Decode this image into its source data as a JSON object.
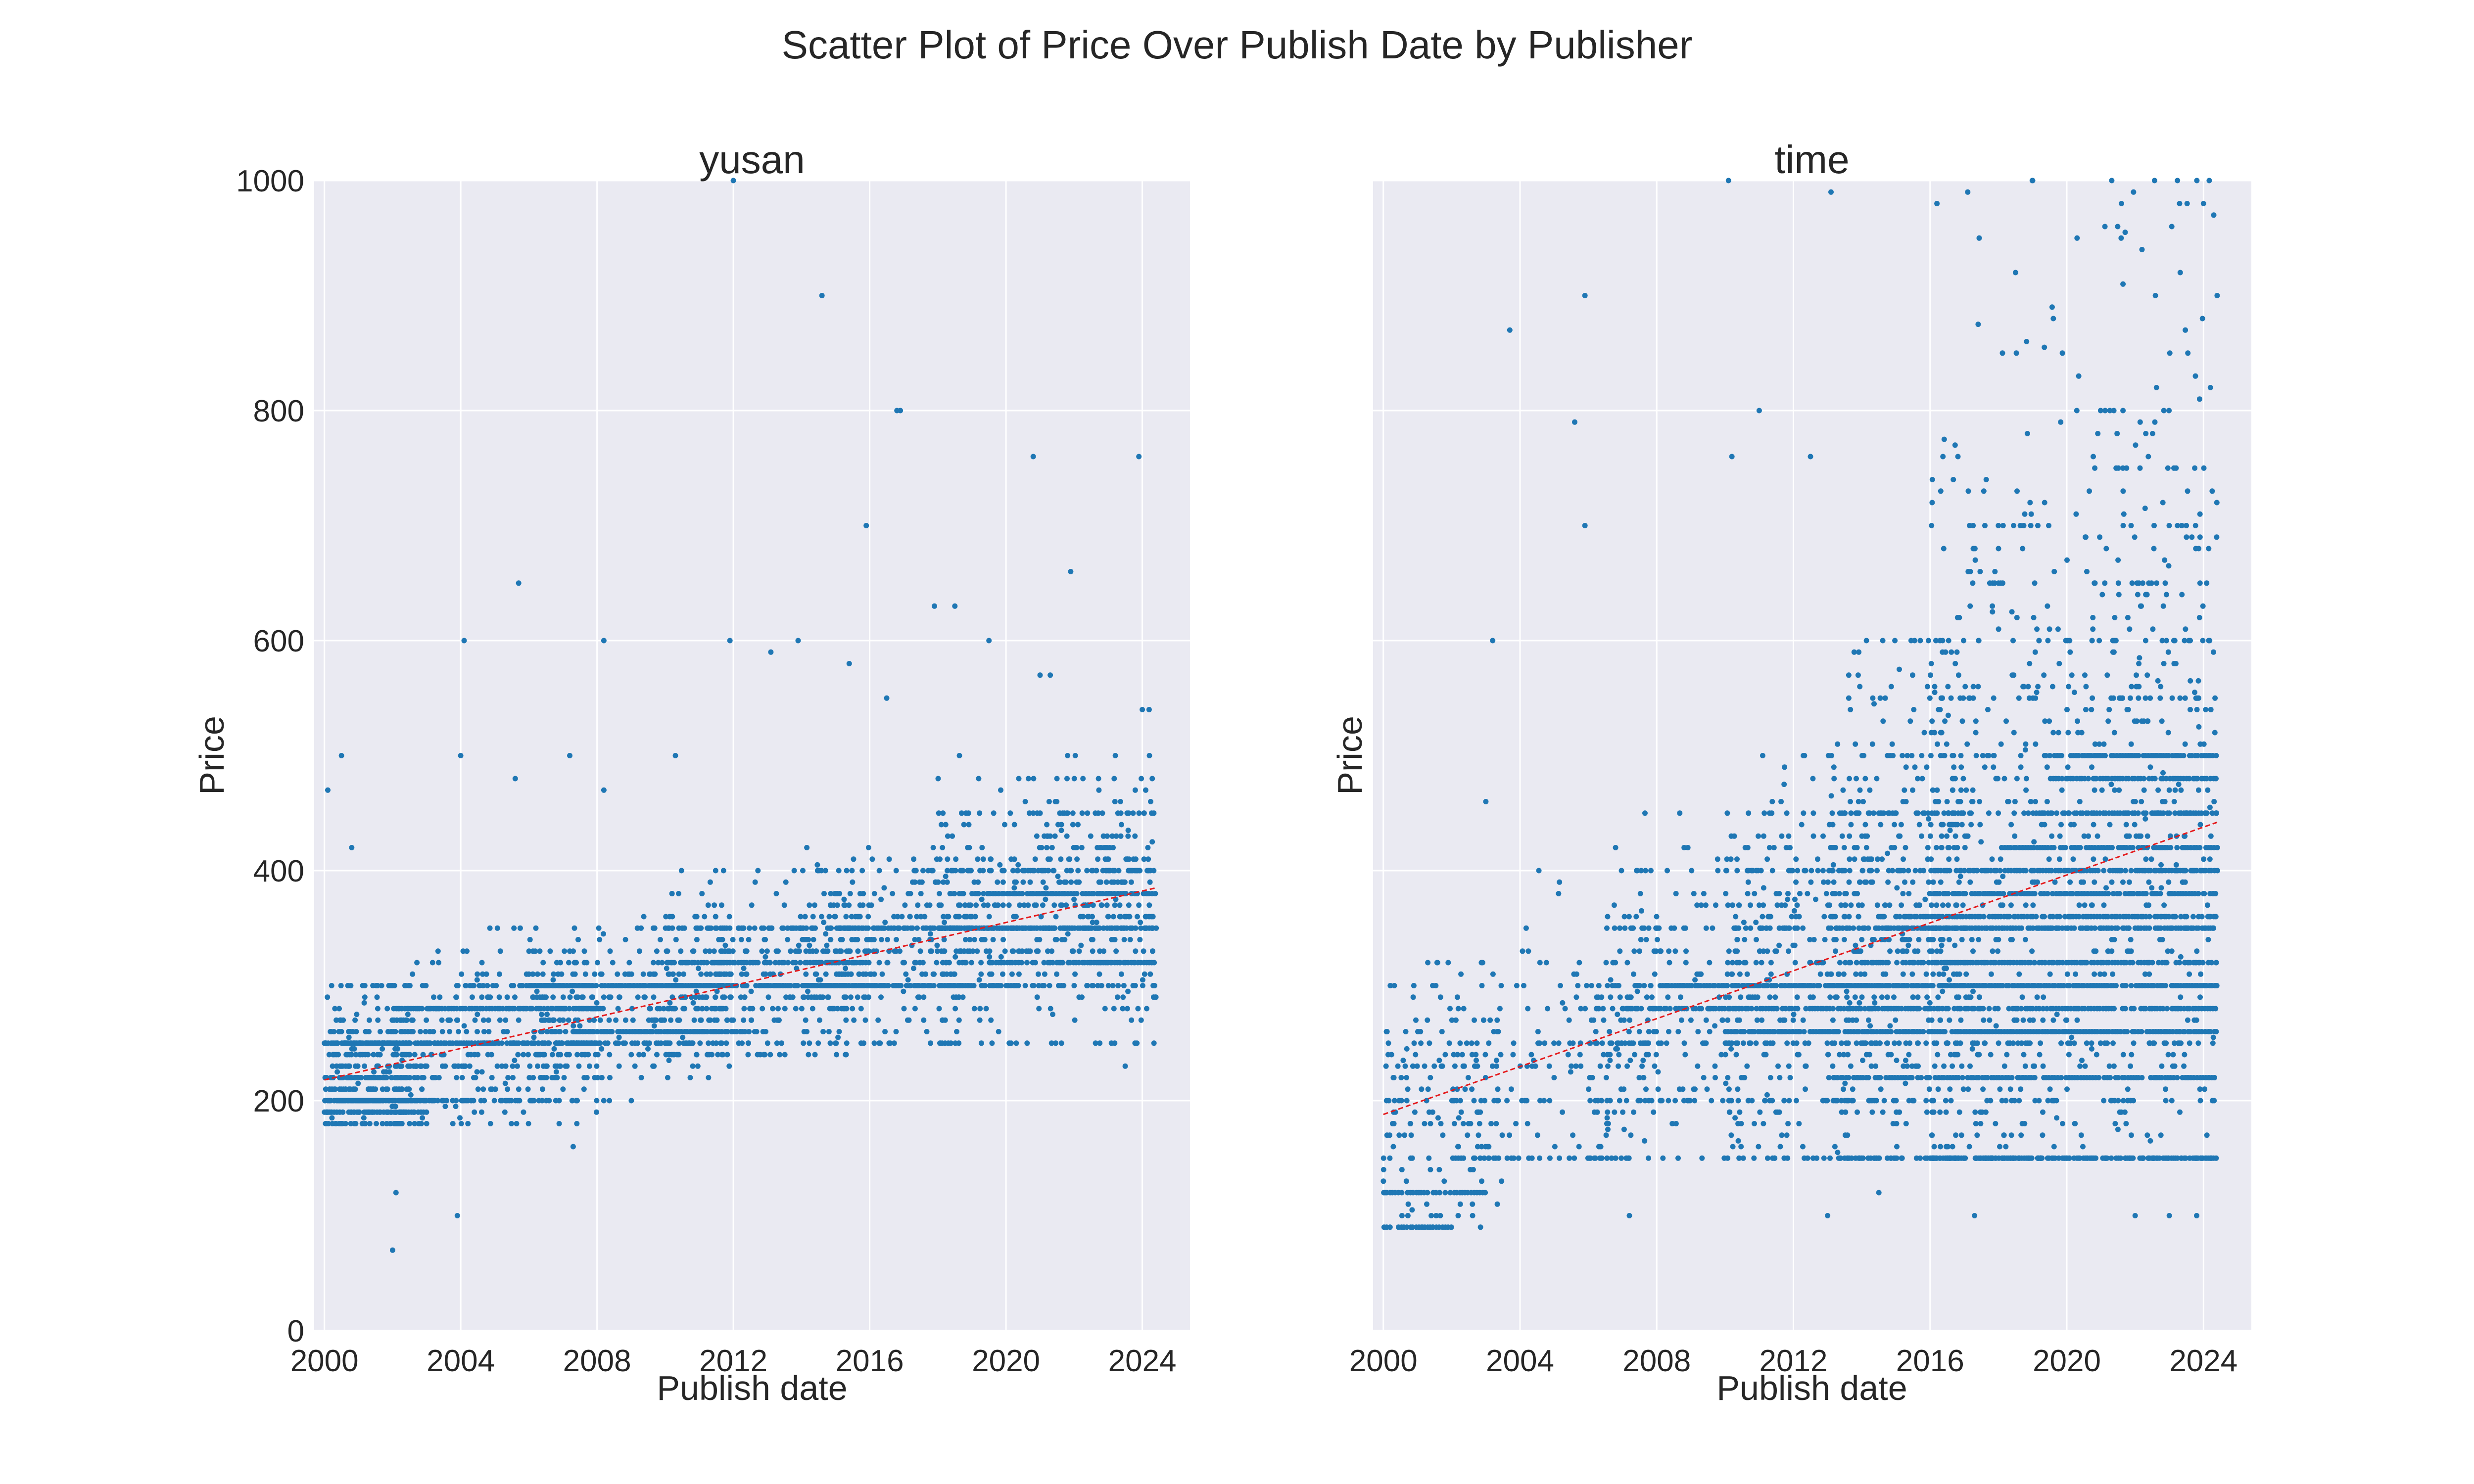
{
  "chart_data": {
    "type": "scatter",
    "title": "Scatter Plot of Price Over Publish Date by Publisher",
    "ylim": [
      0,
      1000
    ],
    "yticks": [
      0,
      200,
      400,
      600,
      800,
      1000
    ],
    "xticks": [
      "2000",
      "2004",
      "2008",
      "2012",
      "2016",
      "2020",
      "2024"
    ],
    "xlim": [
      1999.7,
      2025.4
    ],
    "grid": true,
    "legend": "none",
    "colors": {
      "points": "#1f77b4",
      "trend": "#e41a1c",
      "background": "#eaeaf2"
    },
    "panels": [
      {
        "name": "yusan",
        "xlabel": "Publish date",
        "ylabel": "Price",
        "show_ytick_labels": true,
        "trend": {
          "x": [
            2000.0,
            2024.4
          ],
          "y": [
            218,
            385
          ]
        },
        "bands": [
          [
            2000.0,
            2002.5,
            180,
            300,
            420
          ],
          [
            2002.0,
            2008.0,
            180,
            330,
            500
          ],
          [
            2006.0,
            2012.0,
            220,
            360,
            420
          ],
          [
            2010.0,
            2016.0,
            240,
            400,
            420
          ],
          [
            2014.0,
            2019.0,
            250,
            420,
            380
          ],
          [
            2018.0,
            2024.4,
            250,
            480,
            650
          ]
        ],
        "rows": [
          [
            2000.0,
            2003.5,
            200
          ],
          [
            2000.0,
            2003.0,
            190
          ],
          [
            2000.0,
            2002.5,
            220
          ],
          [
            2000.0,
            2006.0,
            250
          ],
          [
            2002.0,
            2008.0,
            280
          ],
          [
            2006.0,
            2012.0,
            300
          ],
          [
            2008.0,
            2013.0,
            260
          ],
          [
            2010.0,
            2016.0,
            320
          ],
          [
            2013.0,
            2019.0,
            300
          ],
          [
            2018.0,
            2024.4,
            350
          ],
          [
            2019.0,
            2024.4,
            380
          ],
          [
            2019.5,
            2024.4,
            320
          ]
        ],
        "outliers": [
          [
            2000.1,
            470
          ],
          [
            2000.5,
            500
          ],
          [
            2000.8,
            420
          ],
          [
            2002.0,
            70
          ],
          [
            2002.1,
            120
          ],
          [
            2003.9,
            100
          ],
          [
            2004.1,
            600
          ],
          [
            2004.0,
            500
          ],
          [
            2005.7,
            650
          ],
          [
            2005.6,
            480
          ],
          [
            2007.2,
            500
          ],
          [
            2007.3,
            160
          ],
          [
            2008.2,
            600
          ],
          [
            2008.2,
            470
          ],
          [
            2010.3,
            500
          ],
          [
            2011.9,
            600
          ],
          [
            2012.0,
            1000
          ],
          [
            2013.1,
            590
          ],
          [
            2013.9,
            600
          ],
          [
            2014.6,
            900
          ],
          [
            2015.4,
            580
          ],
          [
            2015.9,
            700
          ],
          [
            2016.8,
            800
          ],
          [
            2016.9,
            800
          ],
          [
            2016.5,
            550
          ],
          [
            2017.9,
            630
          ],
          [
            2018.5,
            630
          ],
          [
            2019.5,
            600
          ],
          [
            2020.8,
            760
          ],
          [
            2021.0,
            570
          ],
          [
            2021.3,
            570
          ],
          [
            2021.9,
            660
          ],
          [
            2023.5,
            230
          ],
          [
            2023.9,
            760
          ],
          [
            2024.0,
            540
          ],
          [
            2024.2,
            540
          ]
        ]
      },
      {
        "name": "time",
        "xlabel": "Publish date",
        "ylabel": "Price",
        "show_ytick_labels": false,
        "trend": {
          "x": [
            2000.0,
            2024.4
          ],
          "y": [
            188,
            442
          ]
        },
        "bands": [
          [
            2000.0,
            2003.5,
            90,
            320,
            160
          ],
          [
            2002.0,
            2008.0,
            150,
            400,
            200
          ],
          [
            2006.0,
            2012.0,
            150,
            450,
            320
          ],
          [
            2010.0,
            2014.0,
            150,
            500,
            320
          ],
          [
            2013.0,
            2017.0,
            150,
            600,
            650
          ],
          [
            2016.0,
            2024.4,
            150,
            1000,
            1300
          ]
        ],
        "rows": [
          [
            2000.0,
            2002.0,
            90
          ],
          [
            2000.0,
            2003.0,
            120
          ],
          [
            2007.0,
            2024.4,
            280
          ],
          [
            2008.0,
            2024.4,
            300
          ],
          [
            2010.0,
            2024.4,
            260
          ],
          [
            2013.0,
            2024.4,
            220
          ],
          [
            2014.0,
            2024.4,
            320
          ],
          [
            2014.5,
            2024.4,
            350
          ],
          [
            2015.0,
            2024.4,
            360
          ],
          [
            2016.0,
            2024.4,
            380
          ],
          [
            2017.0,
            2024.4,
            400
          ],
          [
            2018.0,
            2024.4,
            420
          ],
          [
            2019.0,
            2024.4,
            450
          ],
          [
            2019.5,
            2024.4,
            480
          ],
          [
            2020.0,
            2024.4,
            500
          ]
        ],
        "outliers": [
          [
            2003.7,
            870
          ],
          [
            2005.6,
            790
          ],
          [
            2005.9,
            900
          ],
          [
            2005.9,
            700
          ],
          [
            2010.1,
            1000
          ],
          [
            2010.2,
            760
          ],
          [
            2011.0,
            800
          ],
          [
            2012.5,
            760
          ],
          [
            2013.1,
            990
          ],
          [
            2016.2,
            980
          ],
          [
            2017.1,
            990
          ],
          [
            2018.5,
            920
          ],
          [
            2019.0,
            1000
          ],
          [
            2020.3,
            950
          ],
          [
            2021.6,
            980
          ],
          [
            2022.2,
            940
          ],
          [
            2023.3,
            980
          ],
          [
            2024.0,
            980
          ],
          [
            2024.3,
            970
          ],
          [
            2024.4,
            900
          ],
          [
            2003.0,
            460
          ],
          [
            2003.2,
            600
          ],
          [
            2007.2,
            100
          ],
          [
            2013.0,
            100
          ],
          [
            2014.5,
            120
          ],
          [
            2017.3,
            100
          ],
          [
            2022.0,
            100
          ],
          [
            2023.0,
            100
          ],
          [
            2023.8,
            100
          ],
          [
            2024.1,
            170
          ]
        ]
      }
    ]
  }
}
